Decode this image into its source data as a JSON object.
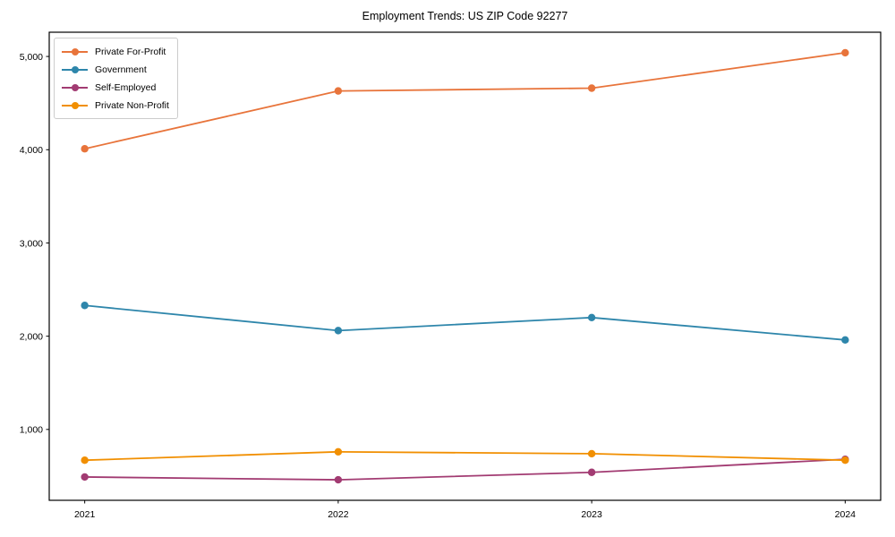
{
  "chart_data": {
    "type": "line",
    "title": "Employment Trends: US ZIP Code 92277",
    "x": [
      2021,
      2022,
      2023,
      2024
    ],
    "x_tick_labels": [
      "2021",
      "2022",
      "2023",
      "2024"
    ],
    "series": [
      {
        "name": "Private For-Profit",
        "color": "#e8743b",
        "values": [
          4010,
          4630,
          4660,
          5040
        ]
      },
      {
        "name": "Government",
        "color": "#2e86ab",
        "values": [
          2330,
          2060,
          2200,
          1960
        ]
      },
      {
        "name": "Self-Employed",
        "color": "#a23b72",
        "values": [
          490,
          460,
          540,
          680
        ]
      },
      {
        "name": "Private Non-Profit",
        "color": "#f18f01",
        "values": [
          670,
          760,
          740,
          670
        ]
      }
    ],
    "yticks": [
      1000,
      2000,
      3000,
      4000,
      5000
    ],
    "ytick_labels": [
      "1,000",
      "2,000",
      "3,000",
      "4,000",
      "5,000"
    ],
    "ylim": [
      240,
      5260
    ],
    "xlim": [
      2020.86,
      2024.14
    ],
    "xlabel": "",
    "ylabel": "",
    "grid": false,
    "legend_position": "upper-left",
    "axis_color": "#000000"
  }
}
